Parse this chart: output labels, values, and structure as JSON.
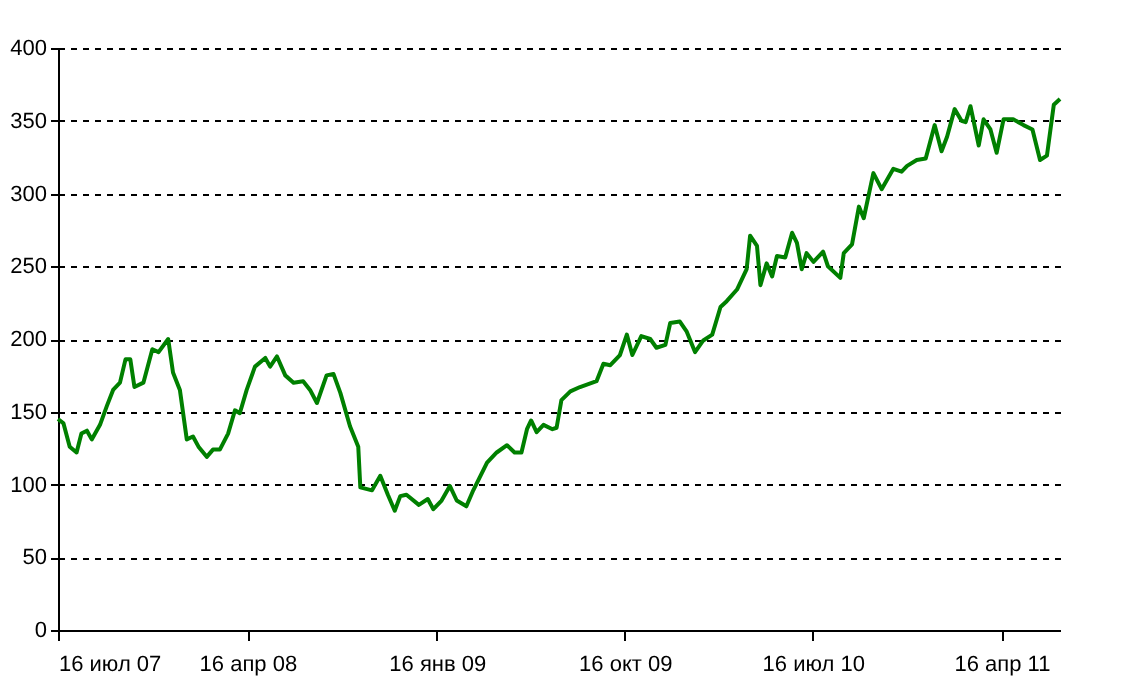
{
  "chart_data": {
    "type": "line",
    "x": [
      "2007-07-16",
      "2007-07-24",
      "2007-08-02",
      "2007-08-12",
      "2007-08-19",
      "2007-08-27",
      "2007-09-03",
      "2007-09-15",
      "2007-09-25",
      "2007-10-04",
      "2007-10-14",
      "2007-10-22",
      "2007-10-29",
      "2007-11-04",
      "2007-11-17",
      "2007-11-30",
      "2007-12-09",
      "2007-12-23",
      "2007-12-30",
      "2008-01-09",
      "2008-01-19",
      "2008-01-28",
      "2008-02-05",
      "2008-02-17",
      "2008-02-26",
      "2008-03-07",
      "2008-03-19",
      "2008-03-29",
      "2008-04-05",
      "2008-04-15",
      "2008-04-27",
      "2008-05-12",
      "2008-05-19",
      "2008-05-29",
      "2008-06-10",
      "2008-06-22",
      "2008-07-06",
      "2008-07-16",
      "2008-07-26",
      "2008-08-09",
      "2008-08-19",
      "2008-08-29",
      "2008-09-12",
      "2008-09-24",
      "2008-09-27",
      "2008-10-14",
      "2008-10-26",
      "2008-11-06",
      "2008-11-16",
      "2008-11-24",
      "2008-12-03",
      "2008-12-21",
      "2009-01-03",
      "2009-01-11",
      "2009-01-23",
      "2009-02-04",
      "2009-02-14",
      "2009-02-28",
      "2009-03-10",
      "2009-03-30",
      "2009-04-13",
      "2009-04-28",
      "2009-05-09",
      "2009-05-19",
      "2009-05-27",
      "2009-06-02",
      "2009-06-10",
      "2009-06-20",
      "2009-07-03",
      "2009-07-09",
      "2009-07-16",
      "2009-07-29",
      "2009-08-12",
      "2009-09-05",
      "2009-09-15",
      "2009-09-25",
      "2009-10-09",
      "2009-10-19",
      "2009-10-27",
      "2009-11-09",
      "2009-11-22",
      "2009-12-01",
      "2009-12-14",
      "2009-12-21",
      "2010-01-04",
      "2010-01-14",
      "2010-01-26",
      "2010-02-07",
      "2010-02-20",
      "2010-03-04",
      "2010-03-13",
      "2010-03-28",
      "2010-04-11",
      "2010-04-16",
      "2010-04-26",
      "2010-05-01",
      "2010-05-10",
      "2010-05-18",
      "2010-05-25",
      "2010-06-06",
      "2010-06-16",
      "2010-06-23",
      "2010-06-30",
      "2010-07-07",
      "2010-07-17",
      "2010-07-31",
      "2010-08-07",
      "2010-08-25",
      "2010-08-30",
      "2010-09-11",
      "2010-09-21",
      "2010-09-28",
      "2010-10-12",
      "2010-10-24",
      "2010-11-10",
      "2010-11-22",
      "2010-11-30",
      "2010-12-14",
      "2010-12-27",
      "2011-01-09",
      "2011-01-19",
      "2011-01-27",
      "2011-02-07",
      "2011-02-17",
      "2011-02-23",
      "2011-03-02",
      "2011-03-14",
      "2011-03-21",
      "2011-03-31",
      "2011-04-09",
      "2011-04-19",
      "2011-05-03",
      "2011-05-18",
      "2011-05-31",
      "2011-06-11",
      "2011-06-21",
      "2011-07-01",
      "2011-07-10"
    ],
    "series": [
      {
        "color": "#008000",
        "values": [
          145,
          142,
          126,
          122,
          135,
          137,
          131,
          141,
          154,
          165,
          170,
          186,
          186,
          167,
          170,
          193,
          191,
          200,
          177,
          165,
          131,
          133,
          126,
          119,
          124,
          124,
          135,
          151,
          149,
          165,
          181,
          187,
          181,
          188,
          175,
          170,
          171,
          165,
          156,
          175,
          176,
          163,
          140,
          126,
          98,
          96,
          106,
          93,
          82,
          92,
          93,
          86,
          90,
          83,
          89,
          99,
          89,
          85,
          96,
          115,
          122,
          127,
          122,
          122,
          138,
          144,
          136,
          141,
          138,
          139,
          158,
          164,
          167,
          171,
          183,
          182,
          189,
          203,
          189,
          202,
          200,
          194,
          196,
          211,
          212,
          205,
          191,
          199,
          203,
          222,
          226,
          234,
          248,
          271,
          264,
          237,
          252,
          243,
          257,
          256,
          273,
          266,
          248,
          259,
          253,
          260,
          250,
          242,
          259,
          265,
          291,
          283,
          314,
          303,
          317,
          315,
          319,
          323,
          324,
          347,
          329,
          339,
          358,
          350,
          349,
          360,
          333,
          351,
          344,
          328,
          351,
          351,
          347,
          344,
          323,
          326,
          361,
          365
        ]
      }
    ],
    "xlim": [
      "2007-07-16",
      "2011-07-10"
    ],
    "xticks": [
      {
        "value": "2007-07-16",
        "label": "16 июл 07"
      },
      {
        "value": "2008-04-16",
        "label": "16 апр 08"
      },
      {
        "value": "2009-01-16",
        "label": "16 янв 09"
      },
      {
        "value": "2009-10-16",
        "label": "16 окт 09"
      },
      {
        "value": "2010-07-16",
        "label": "16 июл 10"
      },
      {
        "value": "2011-04-16",
        "label": "16 апр 11"
      }
    ],
    "ylim": [
      0,
      400
    ],
    "yticks": [
      0,
      50,
      100,
      150,
      200,
      250,
      300,
      350,
      400
    ],
    "grid": "y",
    "line_style": "solid",
    "marker": "none"
  }
}
